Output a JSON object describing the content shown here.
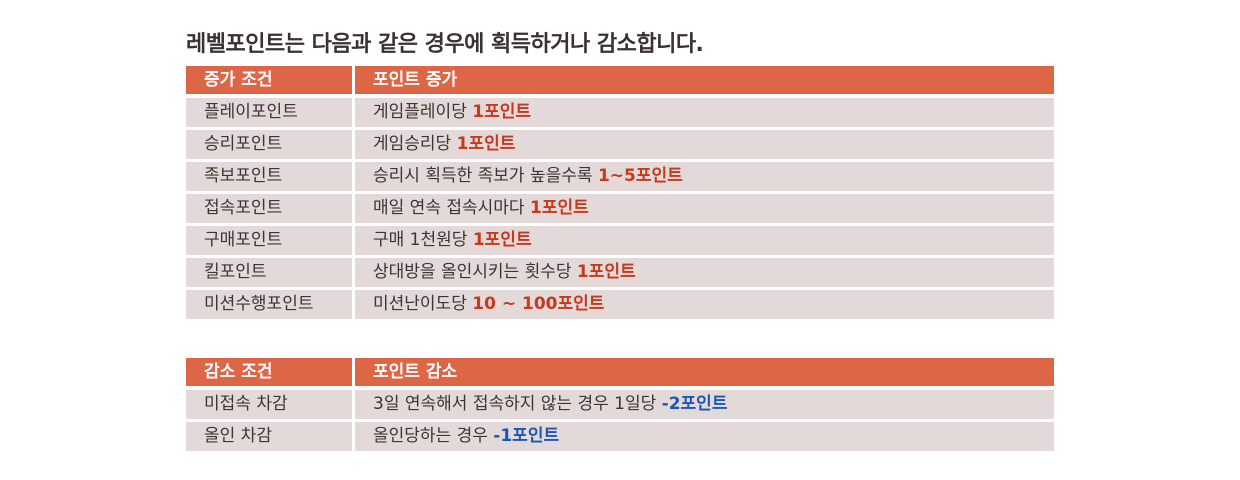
{
  "title": "레벨포인트는 다음과 같은 경우에 획득하거나 감소합니다.",
  "increase_table": {
    "headers": [
      "증가 조건",
      "포인트 증가"
    ],
    "rows": [
      {
        "condition": "플레이포인트",
        "text": "게임플레이당 ",
        "highlight": "1포인트"
      },
      {
        "condition": "승리포인트",
        "text": "게임승리당 ",
        "highlight": "1포인트"
      },
      {
        "condition": "족보포인트",
        "text": "승리시 획득한 족보가 높을수록 ",
        "highlight": "1~5포인트"
      },
      {
        "condition": "접속포인트",
        "text": "매일 연속 접속시마다 ",
        "highlight": "1포인트"
      },
      {
        "condition": "구매포인트",
        "text": "구매 1천원당 ",
        "highlight": "1포인트"
      },
      {
        "condition": "킬포인트",
        "text": "상대방을 올인시키는 횟수당 ",
        "highlight": "1포인트"
      },
      {
        "condition": "미션수행포인트",
        "text": "미션난이도당 ",
        "highlight": "10 ~ 100포인트"
      }
    ]
  },
  "decrease_table": {
    "headers": [
      "감소 조건",
      "포인트 감소"
    ],
    "rows": [
      {
        "condition": "미접속 차감",
        "text": "3일 연속해서 접속하지 않는 경우 1일당 ",
        "highlight": "-2포인트"
      },
      {
        "condition": "올인 차감",
        "text": "올인당하는 경우 ",
        "highlight": "-1포인트"
      }
    ]
  },
  "colors": {
    "header_bg": "#dd6646",
    "row_bg": "#e3d9d8",
    "increase_highlight": "#c8391b",
    "decrease_highlight": "#1a58b8"
  }
}
